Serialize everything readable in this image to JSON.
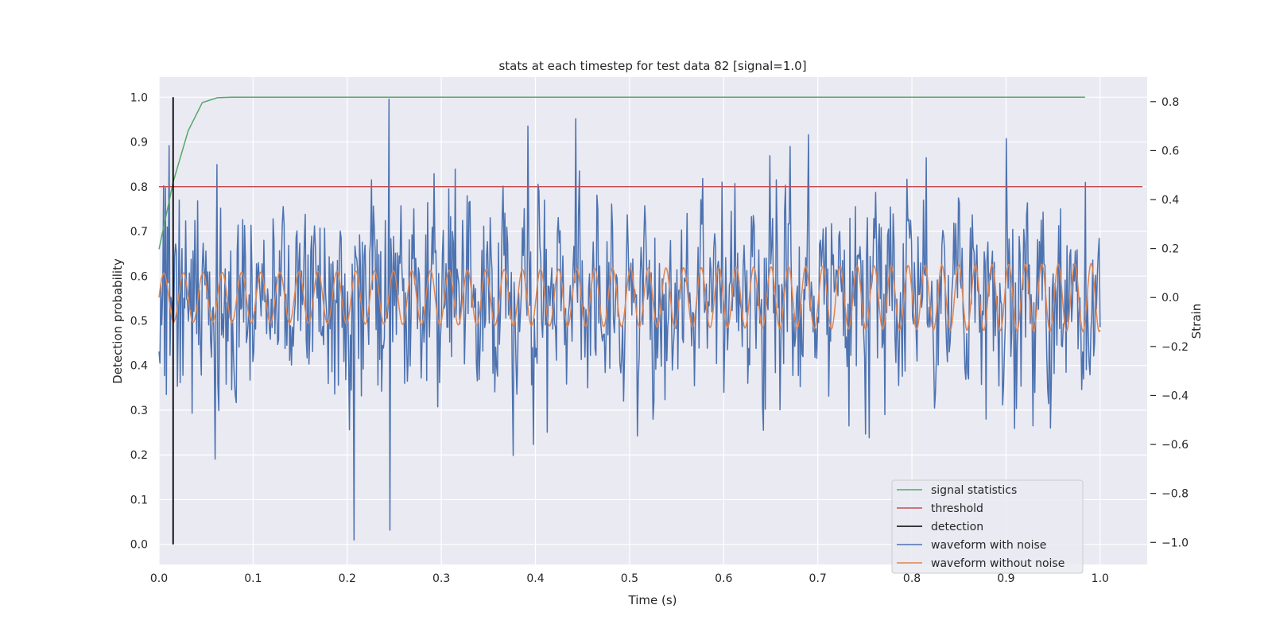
{
  "chart_data": {
    "type": "line",
    "title": "stats at each timestep for test data 82 [signal=1.0]",
    "xlabel": "Time (s)",
    "ylabel_left": "Detection probability",
    "ylabel_right": "Strain",
    "xlim": [
      0.0,
      1.05
    ],
    "ylim_left": [
      -0.045,
      1.045
    ],
    "ylim_right": [
      -1.09,
      0.9
    ],
    "x_ticks": [
      "0.0",
      "0.1",
      "0.2",
      "0.3",
      "0.4",
      "0.5",
      "0.6",
      "0.7",
      "0.8",
      "0.9",
      "1.0"
    ],
    "y_left_ticks": [
      "0.0",
      "0.1",
      "0.2",
      "0.3",
      "0.4",
      "0.5",
      "0.6",
      "0.7",
      "0.8",
      "0.9",
      "1.0"
    ],
    "y_right_ticks": [
      "−1.0",
      "−0.8",
      "−0.6",
      "−0.4",
      "−0.2",
      "0.0",
      "0.2",
      "0.4",
      "0.6",
      "0.8"
    ],
    "grid": true,
    "legend_position": "lower-right",
    "series": [
      {
        "name": "signal statistics",
        "axis": "left",
        "color": "#55a868",
        "x": [
          0.0,
          0.015,
          0.031,
          0.046,
          0.062,
          0.077,
          0.093,
          0.2,
          0.4,
          0.6,
          0.8,
          0.984
        ],
        "values": [
          0.66,
          0.81,
          0.925,
          0.988,
          0.999,
          1.0,
          1.0,
          1.0,
          1.0,
          1.0,
          1.0,
          1.0
        ]
      },
      {
        "name": "threshold",
        "axis": "left",
        "color": "#c44e52",
        "x": [
          0.0,
          1.045
        ],
        "values": [
          0.8,
          0.8
        ]
      },
      {
        "name": "detection",
        "axis": "left",
        "color": "#000000",
        "x": [
          0.015,
          0.015
        ],
        "values": [
          0.0,
          1.0
        ]
      },
      {
        "name": "waveform with noise",
        "axis": "right",
        "color": "#4c72b0",
        "x_range": [
          0.0,
          1.0
        ],
        "noise_sigma": 0.2,
        "ymin": -0.99,
        "ymax": 0.81,
        "spikes": [
          {
            "x": 0.207,
            "value": -0.99
          },
          {
            "x": 0.244,
            "value": 0.81
          },
          {
            "x": 0.245,
            "value": -0.95
          },
          {
            "x": 0.392,
            "value": 0.7
          },
          {
            "x": 0.06,
            "value": -0.66
          },
          {
            "x": 0.0105,
            "value": 0.62
          }
        ]
      },
      {
        "name": "waveform without noise",
        "axis": "right",
        "color": "#dd8452",
        "x_range": [
          0.0,
          1.0
        ],
        "amplitude_start": 0.1,
        "amplitude_end": 0.14,
        "cycles": 48
      }
    ]
  }
}
